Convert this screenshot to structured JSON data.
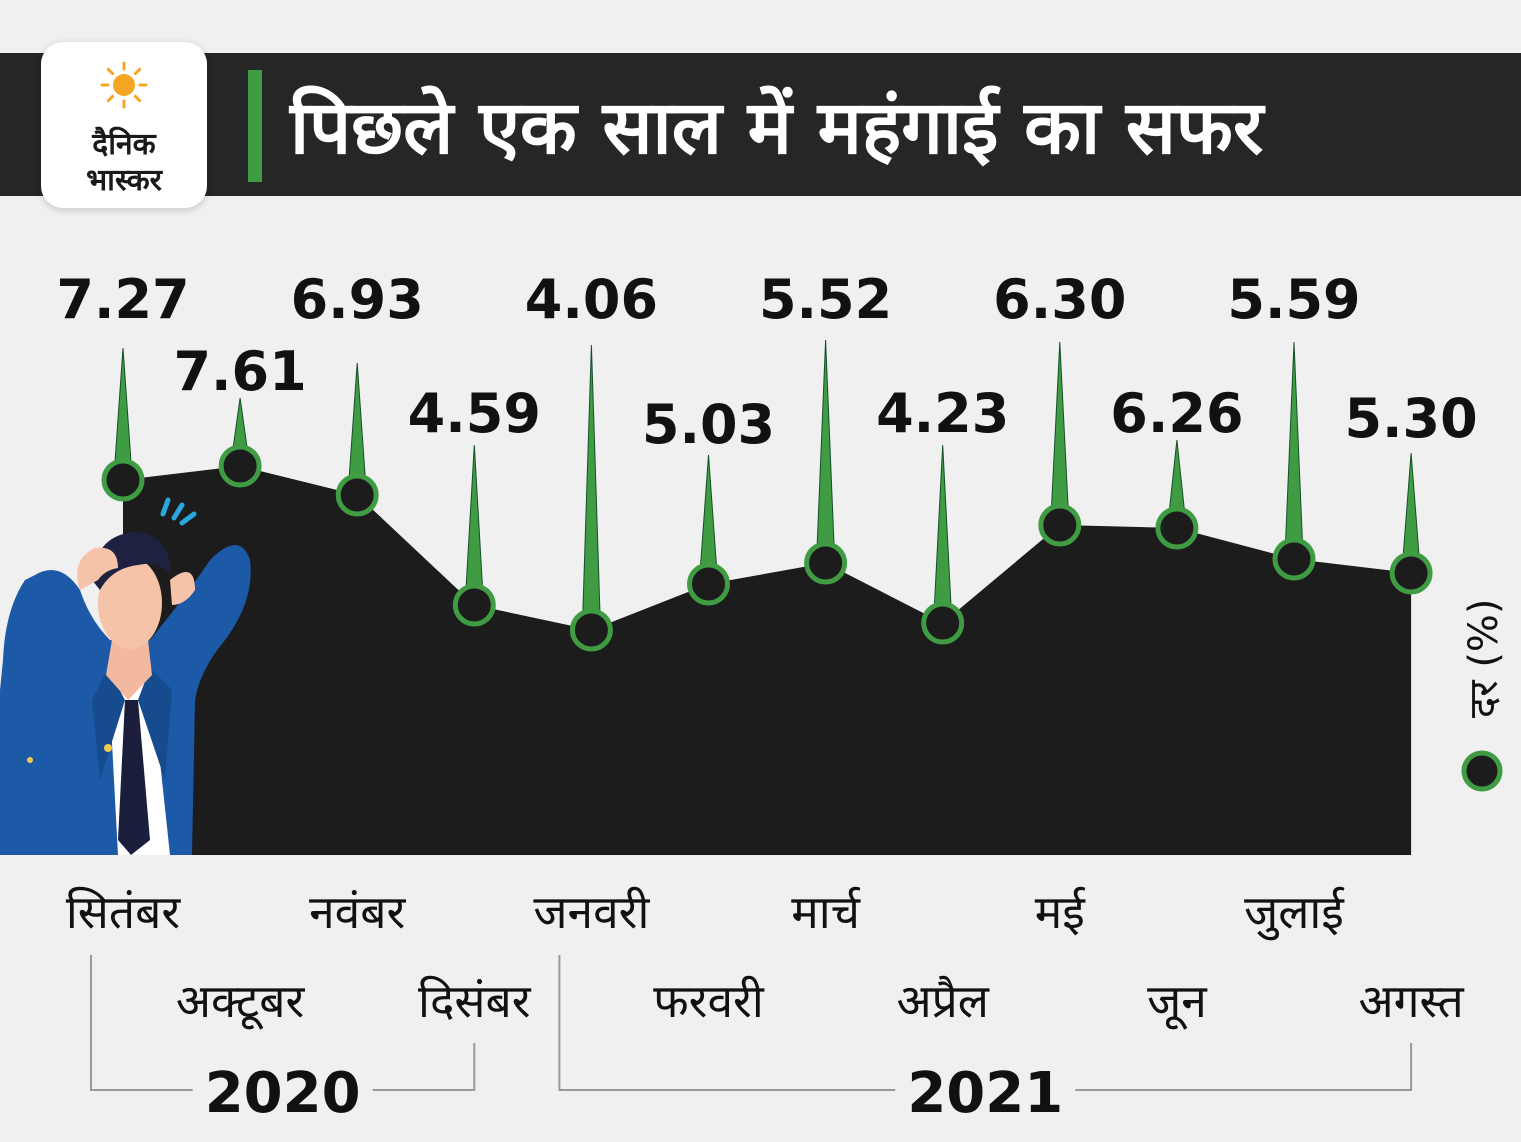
{
  "header": {
    "title": "पिछले एक साल में महंगाई का सफर",
    "logo_line1": "दैनिक",
    "logo_line2": "भास्कर"
  },
  "colors": {
    "header_bg": "#262626",
    "accent": "#3f9c43",
    "area_fill": "#1c1c1c",
    "background": "#f0f0f0"
  },
  "legend": {
    "label": "दर (%)"
  },
  "chart_data": {
    "type": "area",
    "ylabel": "दर (%)",
    "categories": [
      "सितंबर",
      "अक्टूबर",
      "नवंबर",
      "दिसंबर",
      "जनवरी",
      "फरवरी",
      "मार्च",
      "अप्रैल",
      "मई",
      "जून",
      "जुलाई",
      "अगस्त"
    ],
    "values": [
      7.27,
      7.61,
      6.93,
      4.59,
      4.06,
      5.03,
      5.52,
      4.23,
      6.3,
      6.26,
      5.59,
      5.3
    ],
    "value_labels": [
      "7.27",
      "7.61",
      "6.93",
      "4.59",
      "4.06",
      "5.03",
      "5.52",
      "4.23",
      "6.30",
      "6.26",
      "5.59",
      "5.30"
    ],
    "year_groups": [
      {
        "label": "2020",
        "from": 0,
        "to": 3
      },
      {
        "label": "2021",
        "from": 4,
        "to": 11
      }
    ],
    "grid": false
  }
}
